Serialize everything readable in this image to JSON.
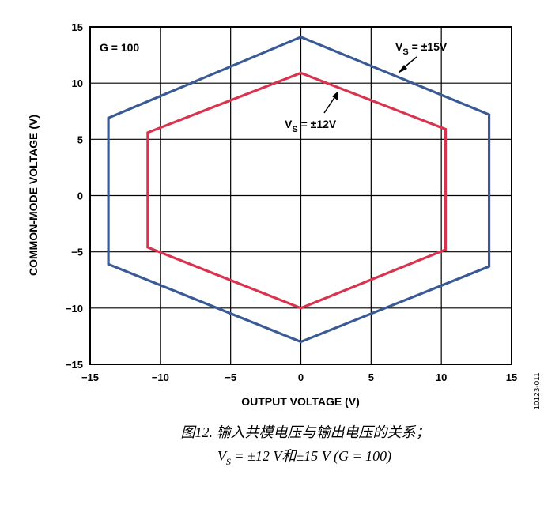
{
  "chart_data": {
    "type": "line",
    "xlabel": "OUTPUT VOLTAGE (V)",
    "ylabel": "COMMON-MODE VOLTAGE (V)",
    "xlim": [
      -15,
      15
    ],
    "ylim": [
      -15,
      15
    ],
    "x_ticks": [
      "−15",
      "−10",
      "−5",
      "0",
      "5",
      "10",
      "15"
    ],
    "y_ticks": [
      "15",
      "10",
      "5",
      "0",
      "−5",
      "−10",
      "−15"
    ],
    "grid": true,
    "annotations": {
      "gain": "G = 100",
      "vs15": {
        "prefix": "V",
        "sub": "S",
        "suffix": " = ±15V"
      },
      "vs12": {
        "prefix": "V",
        "sub": "S",
        "suffix": " = ±12V"
      }
    },
    "series": [
      {
        "name": "VS = ±15V",
        "color": "#3a5a95",
        "points": [
          [
            0,
            14.1
          ],
          [
            13.4,
            7.2
          ],
          [
            13.4,
            -6.3
          ],
          [
            0,
            -13.0
          ],
          [
            -13.7,
            -6.1
          ],
          [
            -13.7,
            6.9
          ]
        ]
      },
      {
        "name": "VS = ±12V",
        "color": "#d8334f",
        "points": [
          [
            0,
            10.9
          ],
          [
            10.3,
            5.9
          ],
          [
            10.3,
            -4.8
          ],
          [
            0,
            -10.0
          ],
          [
            -10.9,
            -4.6
          ],
          [
            -10.9,
            5.6
          ]
        ]
      }
    ]
  },
  "caption": {
    "line1": "图12. 输入共模电压与输出电压的关系；",
    "line2_v": "V",
    "line2_sub": "S",
    "line2_rest": " = ±12 V和±15 V (G = 100)"
  },
  "figure_id": "10123-011"
}
